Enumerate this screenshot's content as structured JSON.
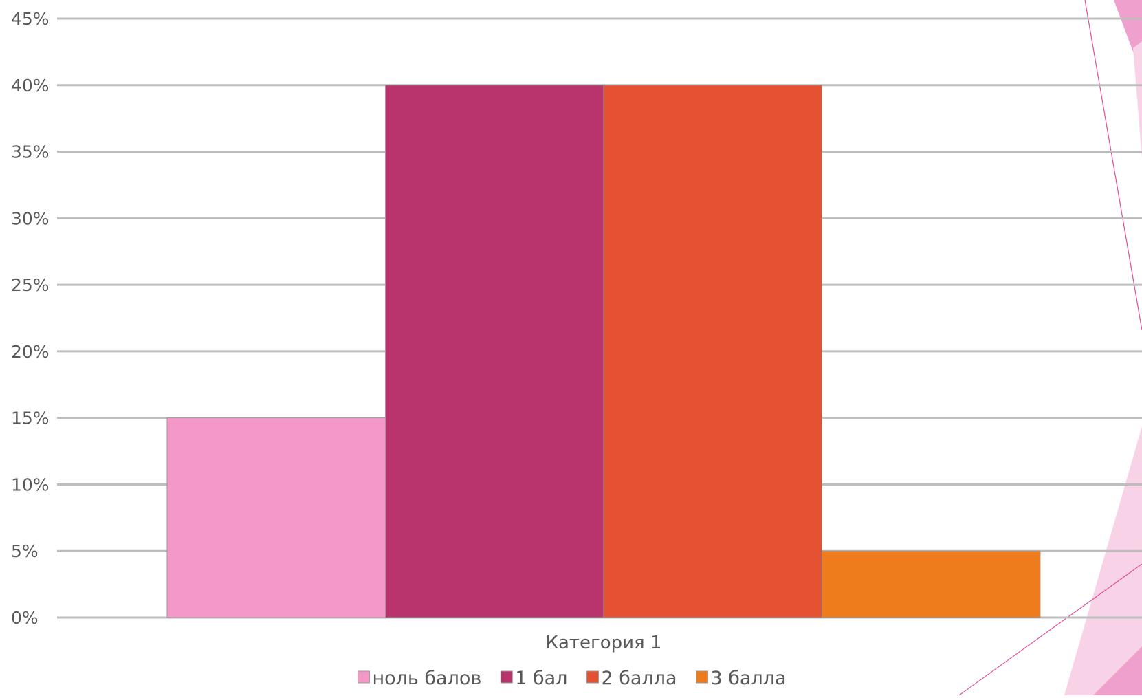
{
  "chart_data": {
    "type": "bar",
    "title": "",
    "xlabel": "",
    "ylabel": "",
    "categories": [
      "Категория 1"
    ],
    "series": [
      {
        "name": "ноль балов",
        "values": [
          15
        ],
        "color": "#F497C9"
      },
      {
        "name": "1 бал",
        "values": [
          40
        ],
        "color": "#B9346C"
      },
      {
        "name": "2 балла",
        "values": [
          40
        ],
        "color": "#E55231"
      },
      {
        "name": "3 балла",
        "values": [
          5
        ],
        "color": "#EE7B1C"
      }
    ],
    "ylim": [
      0,
      45
    ],
    "y_ticks": [
      0,
      5,
      10,
      15,
      20,
      25,
      30,
      35,
      40,
      45
    ],
    "y_tick_format": "percent",
    "grid": true,
    "legend_position": "bottom"
  },
  "colors": {
    "gridline": "#BDBDBD",
    "tick_text": "#595959",
    "decoration_pink": "#F0A0CC",
    "decoration_light_pink": "#F8D2E6",
    "decoration_line": "#E04E9A"
  }
}
